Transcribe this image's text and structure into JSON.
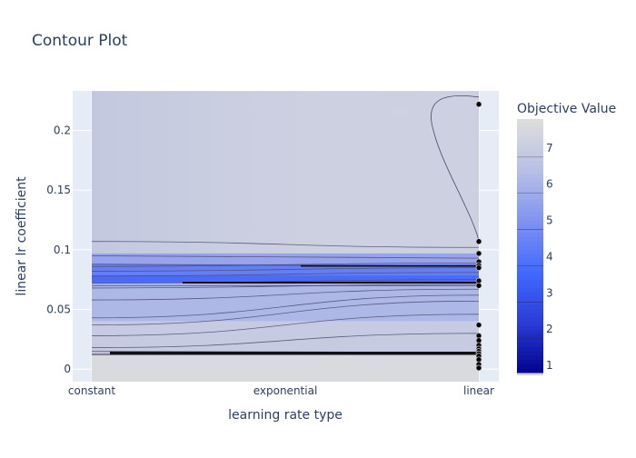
{
  "chart_data": {
    "type": "contour",
    "title": "Contour Plot",
    "xlabel": "learning rate type",
    "ylabel": "linear lr coefficient",
    "x_categories": [
      "constant",
      "exponential",
      "linear"
    ],
    "y_ticks": [
      0,
      0.05,
      0.1,
      0.15,
      0.2
    ],
    "y_tick_labels": [
      "0",
      "0.05",
      "0.1",
      "0.15",
      "0.2"
    ],
    "ylim": [
      -0.0105,
      0.2332
    ],
    "colorbar": {
      "title": "Objective Value",
      "ticks": [
        1,
        2,
        3,
        4,
        5,
        6,
        7
      ],
      "range": [
        0.8,
        7.8
      ],
      "colors": [
        "#00008b",
        "#2a3bd6",
        "#4169ff",
        "#7f90f0",
        "#b6bfe6",
        "#dcdcdc"
      ]
    },
    "contour_levels_y": [
      0.107,
      0.095,
      0.088,
      0.086,
      0.082,
      0.078,
      0.072,
      0.07,
      0.068,
      0.058,
      0.043,
      0.037,
      0.028,
      0.018,
      0.015,
      0.013,
      0.012
    ],
    "background_regions": [
      {
        "y_from": 0.233,
        "y_to": 0.097,
        "value": 7.2
      },
      {
        "y_from": 0.097,
        "y_to": 0.088,
        "value": 5.6
      },
      {
        "y_from": 0.088,
        "y_to": 0.072,
        "value": 4.4
      },
      {
        "y_from": 0.072,
        "y_to": 0.04,
        "value": 6.2
      },
      {
        "y_from": 0.04,
        "y_to": 0.013,
        "value": 7.0
      },
      {
        "y_from": 0.013,
        "y_to": -0.0105,
        "value": 7.7
      }
    ],
    "points": [
      {
        "x": "linear",
        "y": 0.222
      },
      {
        "x": "linear",
        "y": 0.107
      },
      {
        "x": "linear",
        "y": 0.097
      },
      {
        "x": "linear",
        "y": 0.09
      },
      {
        "x": "linear",
        "y": 0.087
      },
      {
        "x": "linear",
        "y": 0.085
      },
      {
        "x": "linear",
        "y": 0.074
      },
      {
        "x": "linear",
        "y": 0.07
      },
      {
        "x": "linear",
        "y": 0.037
      },
      {
        "x": "linear",
        "y": 0.028
      },
      {
        "x": "linear",
        "y": 0.024
      },
      {
        "x": "linear",
        "y": 0.02
      },
      {
        "x": "linear",
        "y": 0.017
      },
      {
        "x": "linear",
        "y": 0.015
      },
      {
        "x": "linear",
        "y": 0.013
      },
      {
        "x": "linear",
        "y": 0.011
      },
      {
        "x": "linear",
        "y": 0.008
      },
      {
        "x": "linear",
        "y": 0.004
      },
      {
        "x": "linear",
        "y": 0.001
      }
    ],
    "grid": true
  }
}
